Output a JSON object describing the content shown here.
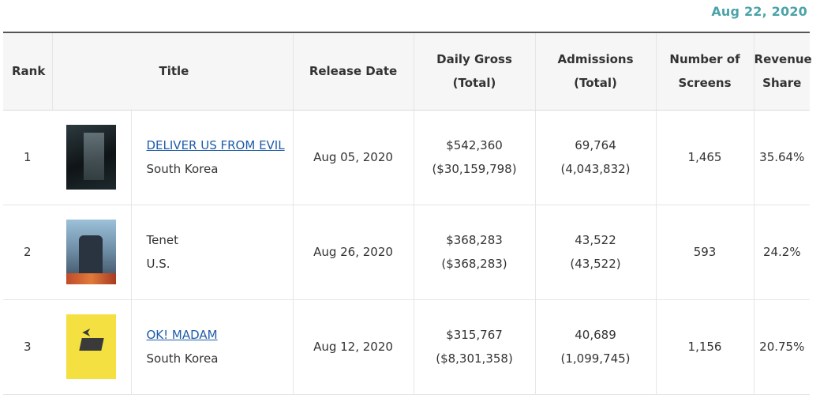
{
  "date": "Aug 22, 2020",
  "headers": {
    "rank": "Rank",
    "title": "Title",
    "release_date": "Release Date",
    "daily_gross_1": "Daily Gross",
    "daily_gross_2": "(Total)",
    "admissions_1": "Admissions",
    "admissions_2": "(Total)",
    "screens_1": "Number of",
    "screens_2": "Screens",
    "share_1": "Revenue",
    "share_2": "Share"
  },
  "rows": [
    {
      "rank": "1",
      "poster_icon": "movie-poster-icon",
      "title": "DELIVER US FROM EVIL",
      "title_is_link": true,
      "country": "South Korea",
      "release_date": "Aug 05, 2020",
      "daily_gross": "$542,360",
      "total_gross": "($30,159,798)",
      "admissions": "69,764",
      "total_admissions": "(4,043,832)",
      "screens": "1,465",
      "share": "35.64%"
    },
    {
      "rank": "2",
      "poster_icon": "movie-poster-icon",
      "title": "Tenet",
      "title_is_link": false,
      "country": "U.S.",
      "release_date": "Aug 26, 2020",
      "daily_gross": "$368,283",
      "total_gross": "($368,283)",
      "admissions": "43,522",
      "total_admissions": "(43,522)",
      "screens": "593",
      "share": "24.2%"
    },
    {
      "rank": "3",
      "poster_icon": "movie-poster-icon",
      "title": "OK! MADAM",
      "title_is_link": true,
      "country": "South Korea",
      "release_date": "Aug 12, 2020",
      "daily_gross": "$315,767",
      "total_gross": "($8,301,358)",
      "admissions": "40,689",
      "total_admissions": "(1,099,745)",
      "screens": "1,156",
      "share": "20.75%"
    }
  ],
  "colors": {
    "date_accent": "#4aa3a8",
    "link": "#1e5ca8",
    "header_bg": "#f6f6f6"
  }
}
